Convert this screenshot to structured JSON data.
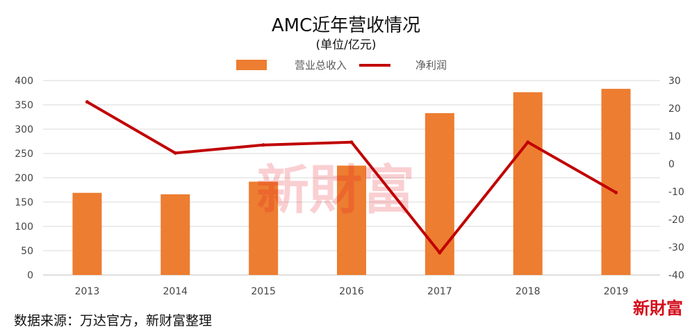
{
  "chart_data": {
    "type": "bar",
    "title": "AMC近年营收情况",
    "subtitle": "(单位/亿元)",
    "categories": [
      "2013",
      "2014",
      "2015",
      "2016",
      "2017",
      "2018",
      "2019"
    ],
    "series": [
      {
        "name": "营业总收入",
        "type": "bar",
        "axis": "left",
        "color": "#ED7D31",
        "values": [
          169,
          166,
          192,
          225,
          333,
          376,
          383
        ]
      },
      {
        "name": "净利润",
        "type": "line",
        "axis": "right",
        "color": "#C00000",
        "values": [
          22.3,
          3.9,
          6.8,
          7.8,
          -32,
          7.8,
          -10.3
        ]
      }
    ],
    "y_left": {
      "min": 0,
      "max": 400,
      "step": 50,
      "ticks": [
        "0",
        "50",
        "100",
        "150",
        "200",
        "250",
        "300",
        "350",
        "400"
      ]
    },
    "y_right": {
      "min": -40,
      "max": 30,
      "step": 10,
      "ticks": [
        "-40",
        "-30",
        "-20",
        "-10",
        "0",
        "10",
        "20",
        "30"
      ]
    },
    "grid": true,
    "legend_position": "top"
  },
  "watermark": "新財富",
  "source_note": "数据来源：万达官方，新财富整理",
  "brand_logo": "新財富"
}
